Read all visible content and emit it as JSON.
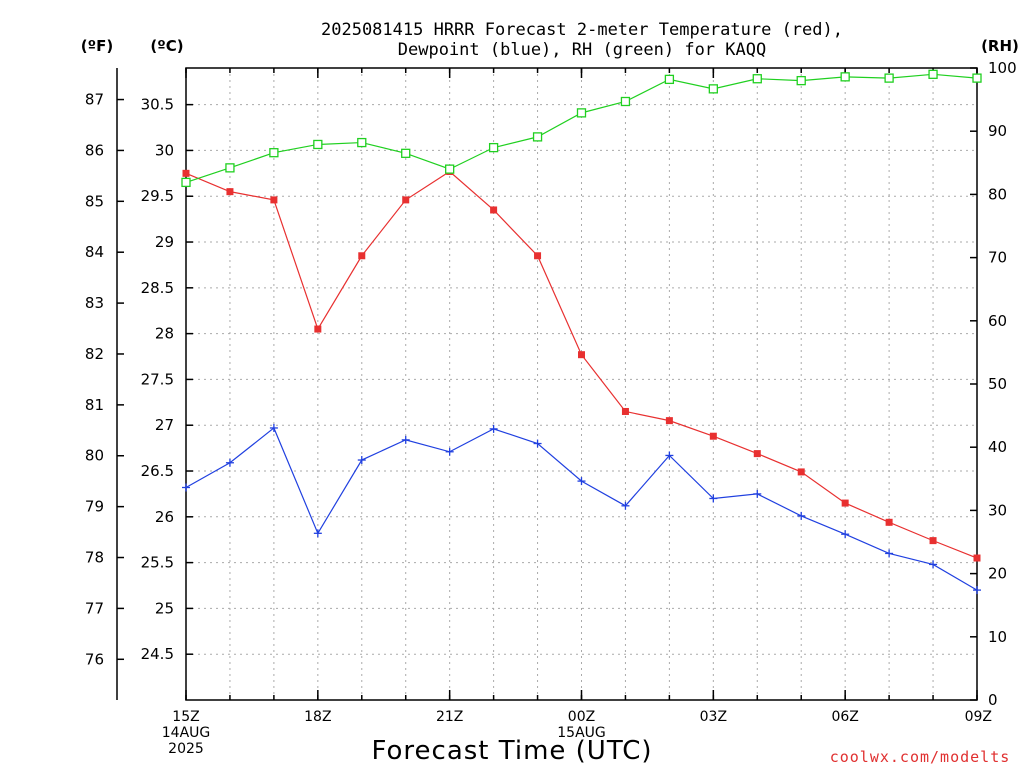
{
  "header": {
    "title_line1": "2025081415 HRRR Forecast 2-meter Temperature (red),",
    "title_line2": "Dewpoint (blue), RH (green) for KAQQ",
    "unit_f": "(ºF)",
    "unit_c": "(ºC)",
    "unit_rh": "(RH)"
  },
  "footer": {
    "xlabel": "Forecast Time (UTC)",
    "credit": "coolwx.com/modelts"
  },
  "colors": {
    "temperature": "#e83030",
    "dewpoint": "#2040e0",
    "rh": "#20d020"
  },
  "chart_data": {
    "type": "line",
    "title": "2025081415 HRRR Forecast 2-meter Temperature (red), Dewpoint (blue), RH (green) for KAQQ",
    "xlabel": "Forecast Time (UTC)",
    "x_hours": [
      0,
      1,
      2,
      3,
      4,
      5,
      6,
      7,
      8,
      9,
      10,
      11,
      12,
      13,
      14,
      15,
      16,
      17,
      18
    ],
    "x_tick_hours": [
      0,
      3,
      6,
      9,
      12,
      15,
      18
    ],
    "x_tick_labels": [
      [
        "15Z",
        "14AUG",
        "2025"
      ],
      [
        "18Z"
      ],
      [
        "21Z"
      ],
      [
        "00Z",
        "15AUG"
      ],
      [
        "03Z"
      ],
      [
        "06Z"
      ],
      [
        "09Z"
      ]
    ],
    "xlim": [
      0,
      18
    ],
    "y_celsius_ticks": [
      "24.5",
      "25",
      "25.5",
      "26",
      "26.5",
      "27",
      "27.5",
      "28",
      "28.5",
      "29",
      "29.5",
      "30",
      "30.5"
    ],
    "y_fahrenheit_ticks": [
      "76",
      "77",
      "78",
      "79",
      "80",
      "81",
      "82",
      "83",
      "84",
      "85",
      "86",
      "87"
    ],
    "y_rh_ticks": [
      "0",
      "10",
      "20",
      "30",
      "40",
      "50",
      "60",
      "70",
      "80",
      "90",
      "100"
    ],
    "ylim_celsius": [
      24.0,
      30.9
    ],
    "ylim_rh": [
      0,
      100
    ],
    "grid": true,
    "series": [
      {
        "name": "Temperature",
        "axis": "celsius",
        "marker": "filled-square",
        "values": [
          29.75,
          29.55,
          29.46,
          28.05,
          28.85,
          29.46,
          29.77,
          29.35,
          28.85,
          27.77,
          27.15,
          27.05,
          26.88,
          26.69,
          26.49,
          26.15,
          25.94,
          25.74,
          25.55
        ]
      },
      {
        "name": "Dewpoint",
        "axis": "celsius",
        "marker": "plus",
        "values": [
          26.32,
          26.59,
          26.97,
          25.82,
          26.62,
          26.84,
          26.71,
          26.96,
          26.8,
          26.39,
          26.12,
          26.67,
          26.2,
          26.25,
          26.01,
          25.81,
          25.6,
          25.48,
          25.2
        ]
      },
      {
        "name": "RH",
        "axis": "rh",
        "marker": "open-square",
        "values": [
          81.9,
          84.2,
          86.6,
          87.9,
          88.2,
          86.5,
          84.0,
          87.4,
          89.1,
          92.9,
          94.7,
          98.2,
          96.7,
          98.3,
          98.0,
          98.6,
          98.4,
          99.0,
          98.4
        ]
      }
    ]
  }
}
